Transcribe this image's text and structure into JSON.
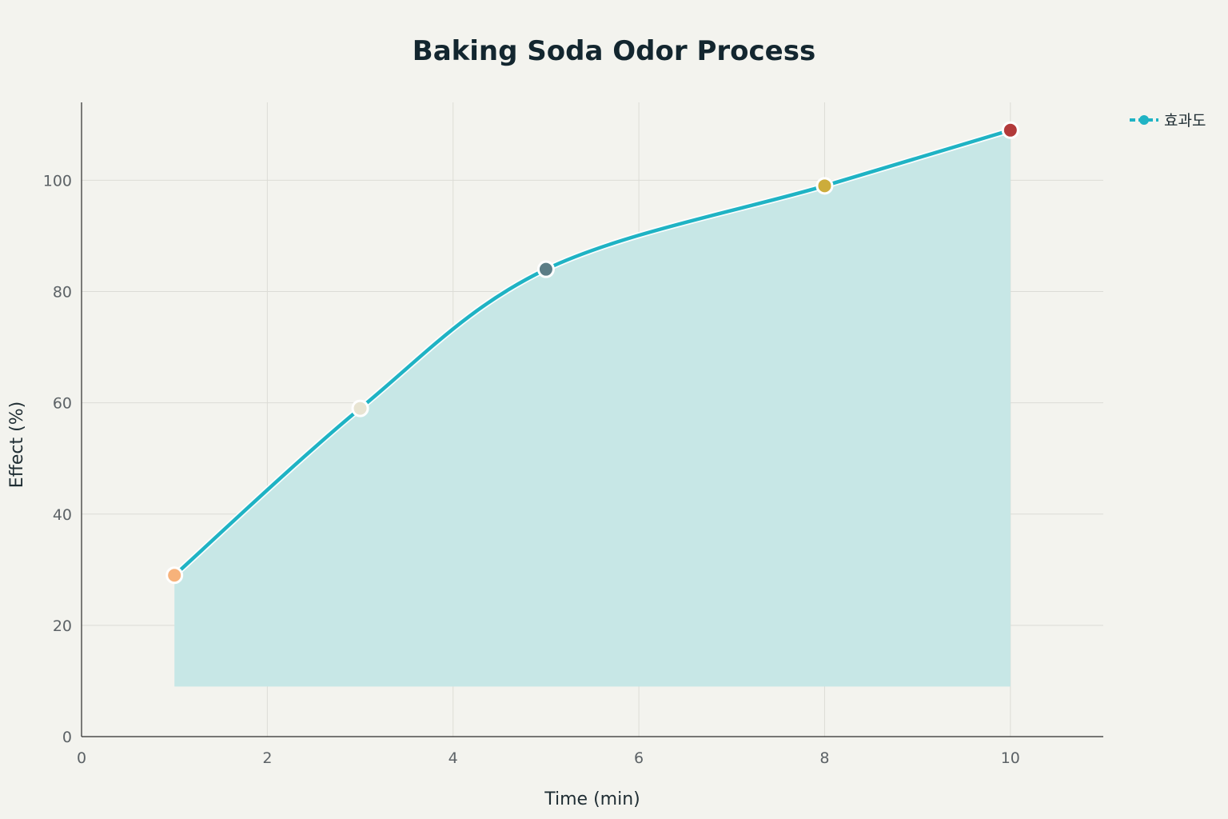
{
  "chart_data": {
    "type": "area",
    "title": "Baking Soda Odor Process",
    "xlabel": "Time (min)",
    "ylabel": "Effect (%)",
    "xlim": [
      0,
      11
    ],
    "ylim": [
      0,
      114
    ],
    "x_ticks": [
      0,
      2,
      4,
      6,
      8,
      10
    ],
    "y_ticks": [
      0,
      20,
      40,
      60,
      80,
      100
    ],
    "fill_base": 9,
    "grid": true,
    "legend_position": "top-right",
    "series": [
      {
        "name": "효과도",
        "color": "#1fb3c4",
        "fill_color": "#c7e7e6",
        "x": [
          1,
          3,
          5,
          8,
          10
        ],
        "y": [
          29,
          59,
          84,
          99,
          109
        ],
        "marker_colors": [
          "#f7b27a",
          "#e8e4d2",
          "#5c7d86",
          "#ccac3b",
          "#b23a3a"
        ]
      }
    ]
  }
}
